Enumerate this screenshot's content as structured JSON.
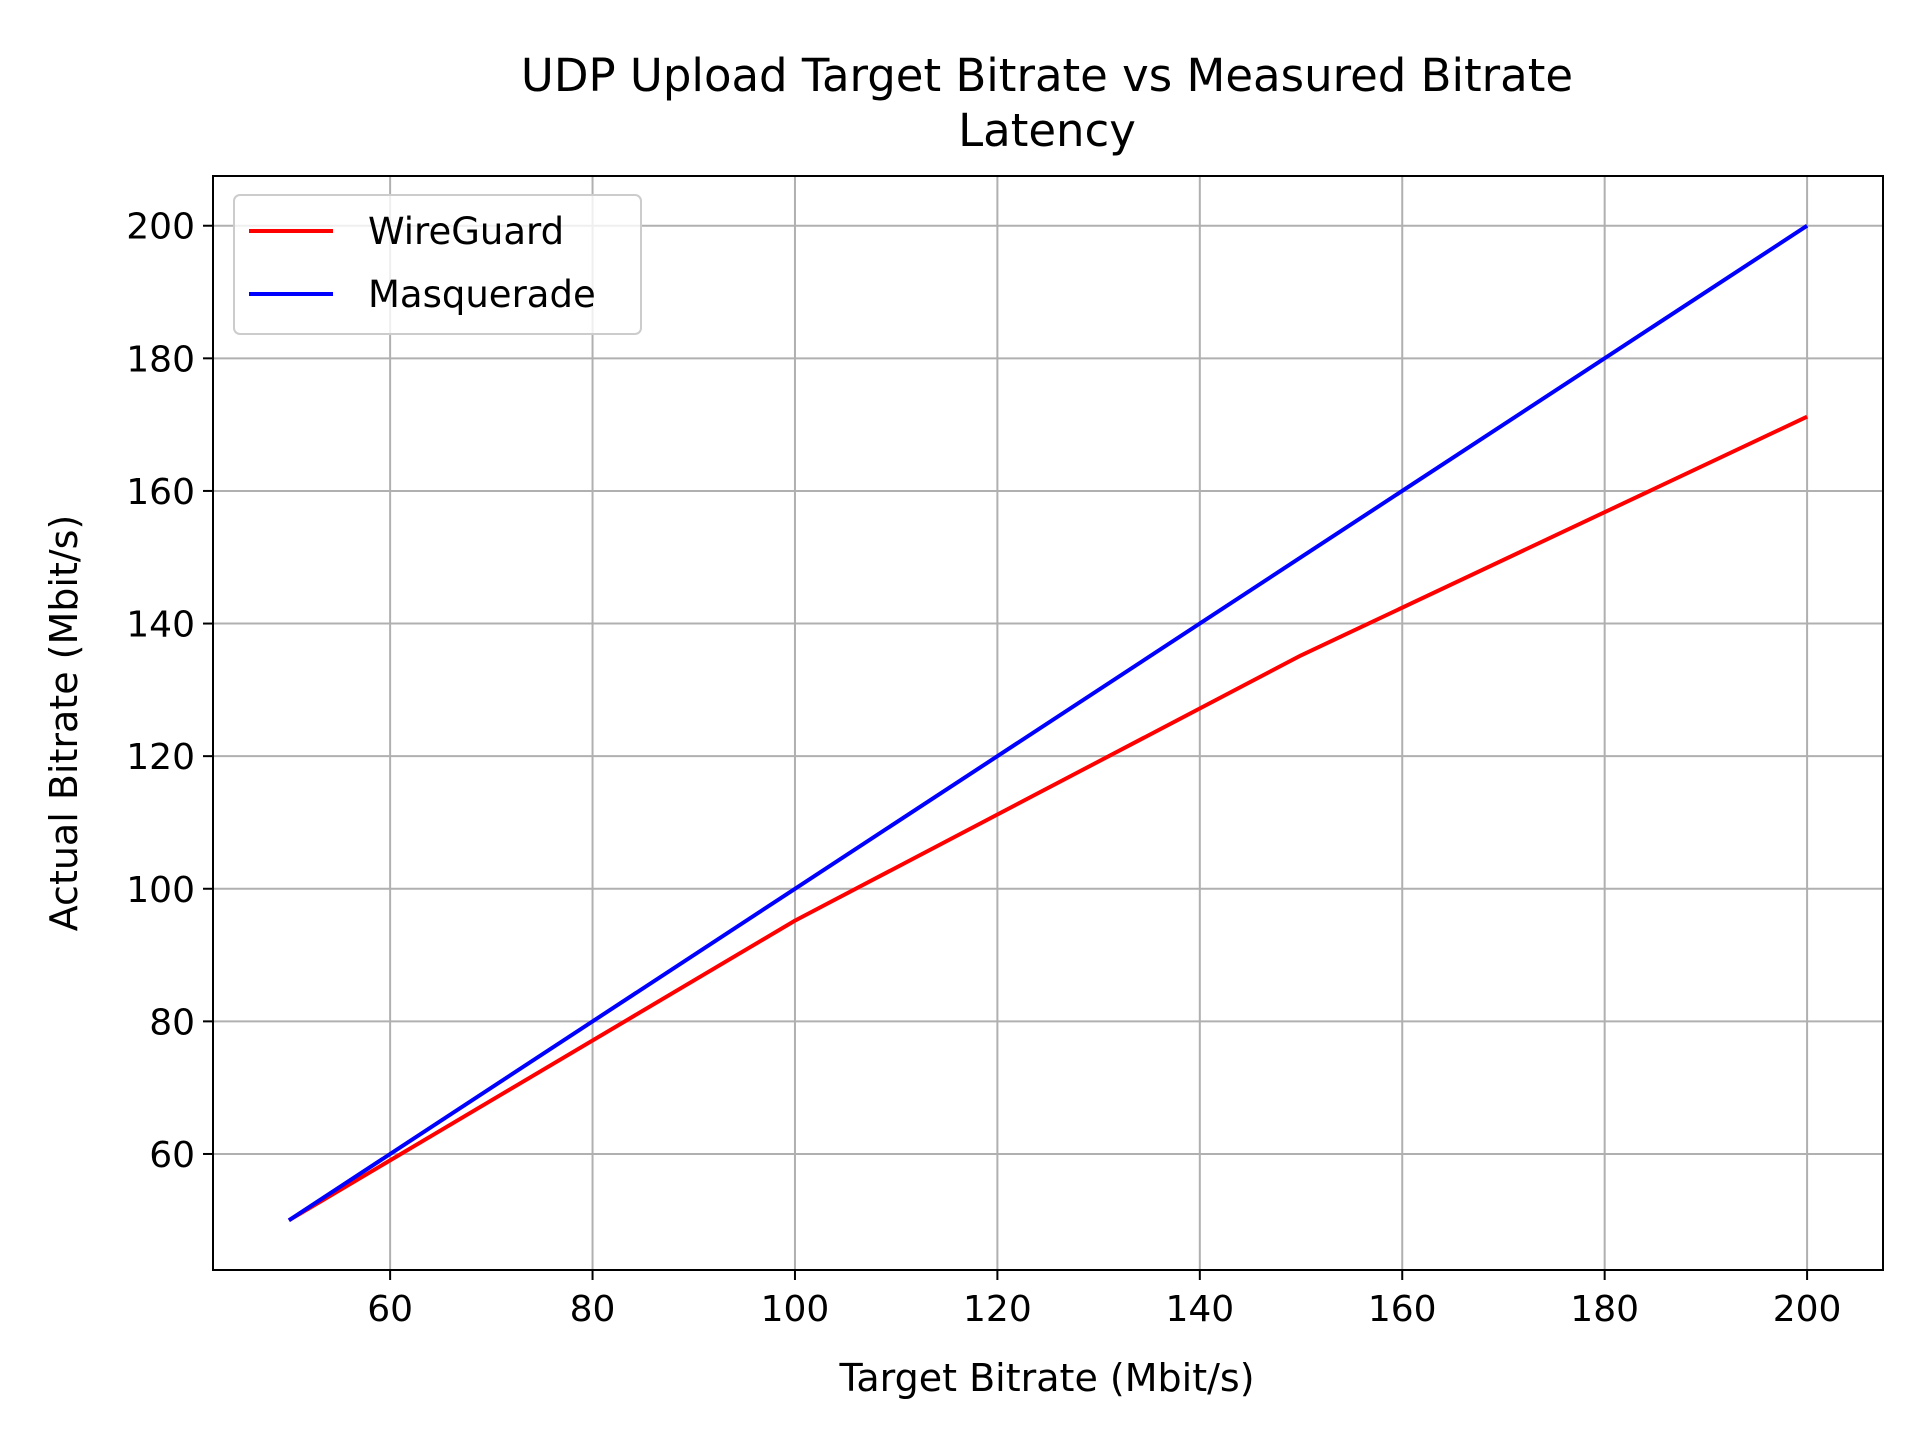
{
  "chart_data": {
    "type": "line",
    "title": "UDP Upload Target Bitrate vs Measured Bitrate",
    "subtitle": "Latency",
    "xlabel": "Target Bitrate (Mbit/s)",
    "ylabel": "Actual Bitrate (Mbit/s)",
    "xlim": [
      42.5,
      207.5
    ],
    "ylim": [
      42.5,
      207.5
    ],
    "xticks": [
      60,
      80,
      100,
      120,
      140,
      160,
      180,
      200
    ],
    "yticks": [
      60,
      80,
      100,
      120,
      140,
      160,
      180,
      200
    ],
    "grid": true,
    "legend_position": "upper-left",
    "series": [
      {
        "name": "WireGuard",
        "color": "#ff0000",
        "x": [
          50,
          100,
          150,
          200
        ],
        "y": [
          50,
          95.2,
          135.2,
          171.2
        ]
      },
      {
        "name": "Masquerade",
        "color": "#0000ff",
        "x": [
          50,
          100,
          150,
          200
        ],
        "y": [
          50,
          100,
          150,
          200
        ]
      }
    ]
  }
}
